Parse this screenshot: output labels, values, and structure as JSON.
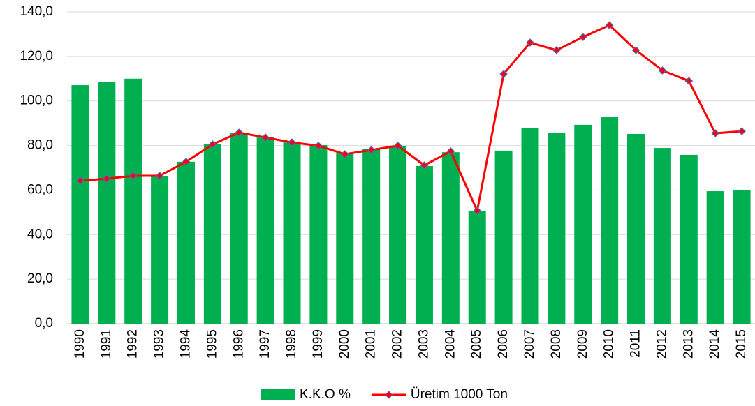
{
  "chart_data": {
    "type": "bar-line",
    "categories": [
      "1990",
      "1991",
      "1992",
      "1993",
      "1994",
      "1995",
      "1996",
      "1997",
      "1998",
      "1999",
      "2000",
      "2001",
      "2002",
      "2003",
      "2004",
      "2005",
      "2006",
      "2007",
      "2008",
      "2009",
      "2010",
      "2011",
      "2012",
      "2013",
      "2014",
      "2015"
    ],
    "series": [
      {
        "name": "K.K.O %",
        "type": "bar",
        "color": "#00b050",
        "values": [
          107.1,
          108.4,
          110.0,
          66.4,
          72.7,
          80.5,
          85.8,
          83.6,
          81.4,
          80.2,
          76.7,
          78.3,
          79.9,
          70.8,
          77.0,
          50.7,
          77.7,
          87.7,
          85.5,
          89.3,
          92.7,
          85.2,
          78.9,
          75.8,
          59.5,
          60.1
        ]
      },
      {
        "name": "Üretim 1000 Ton",
        "type": "line",
        "color": "#ff0000",
        "marker_color": "#4a6bc4",
        "values": [
          64.2,
          65.1,
          66.4,
          66.4,
          72.7,
          80.5,
          85.8,
          83.6,
          81.4,
          79.9,
          76.1,
          78.0,
          79.9,
          71.1,
          77.4,
          50.7,
          112.1,
          126.2,
          122.8,
          128.7,
          134.0,
          122.8,
          113.7,
          109.0,
          85.5,
          86.4
        ]
      }
    ],
    "ylim": [
      0,
      140
    ],
    "yticks": [
      {
        "value": 0,
        "label": "0,0"
      },
      {
        "value": 20,
        "label": "20,0"
      },
      {
        "value": 40,
        "label": "40,0"
      },
      {
        "value": 60,
        "label": "60,0"
      },
      {
        "value": 80,
        "label": "80,0"
      },
      {
        "value": 100,
        "label": "100,0"
      },
      {
        "value": 120,
        "label": "120,0"
      },
      {
        "value": 140,
        "label": "140,0"
      }
    ],
    "grid": true,
    "legend": "bottom"
  }
}
